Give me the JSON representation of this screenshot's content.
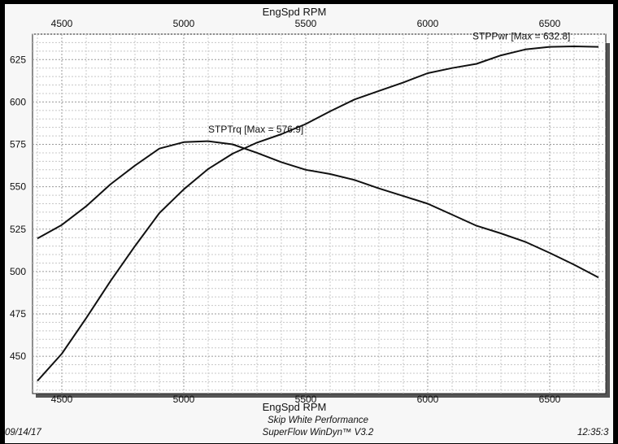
{
  "chart_data": {
    "type": "line",
    "xlabel": "EngSpd RPM",
    "x_ticks": [
      4500,
      5000,
      5500,
      6000,
      6500
    ],
    "y_ticks": [
      450,
      475,
      500,
      525,
      550,
      575,
      600,
      625
    ],
    "xlim": [
      4380,
      6730
    ],
    "ylim": [
      428,
      640
    ],
    "grid": true,
    "series": [
      {
        "name": "STPTrq",
        "annotation": "STPTrq [Max = 576.9]",
        "x": [
          4400,
          4500,
          4600,
          4700,
          4800,
          4900,
          5000,
          5100,
          5200,
          5300,
          5400,
          5500,
          5600,
          5700,
          5800,
          5900,
          6000,
          6100,
          6200,
          6300,
          6400,
          6500,
          6600,
          6700
        ],
        "y": [
          519.5,
          527.5,
          538.5,
          551.5,
          562.5,
          572.5,
          576.3,
          576.9,
          575.0,
          570.0,
          564.5,
          560.0,
          557.5,
          554.0,
          549.0,
          544.5,
          540.0,
          533.5,
          527.0,
          522.5,
          517.5,
          511.0,
          504.0,
          496.5
        ]
      },
      {
        "name": "STPPwr",
        "annotation": "STPPwr [Max = 632.8]",
        "x": [
          4400,
          4500,
          4600,
          4700,
          4800,
          4900,
          5000,
          5100,
          5200,
          5300,
          5400,
          5500,
          5600,
          5700,
          5800,
          5900,
          6000,
          6100,
          6200,
          6300,
          6400,
          6500,
          6600,
          6700
        ],
        "y": [
          435.5,
          451.5,
          472.5,
          494.5,
          515.0,
          534.5,
          548.5,
          560.5,
          569.5,
          576.0,
          581.0,
          587.0,
          594.5,
          601.5,
          606.5,
          611.5,
          617.0,
          620.0,
          622.5,
          627.5,
          631.0,
          632.5,
          632.8,
          632.5
        ]
      }
    ]
  },
  "footer": {
    "date": "09/14/17",
    "company": "Skip White Performance",
    "software": "SuperFlow WinDyn™ V3.2",
    "time": "12:35:3"
  }
}
